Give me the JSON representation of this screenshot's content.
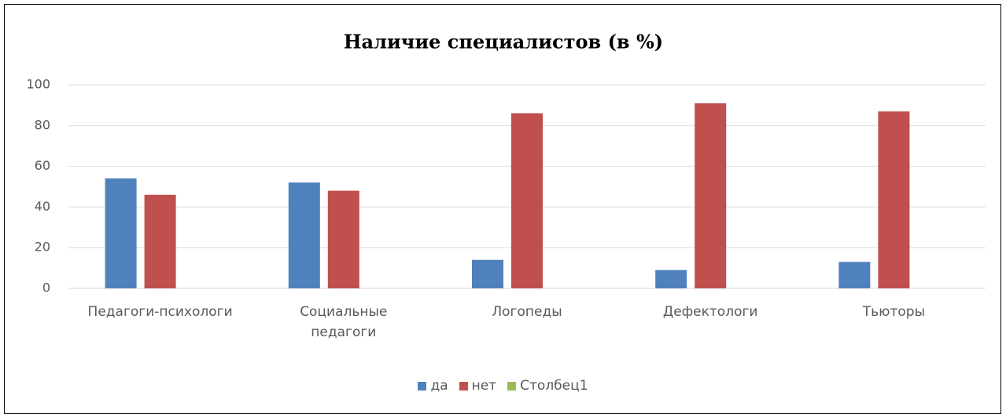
{
  "chart_data": {
    "type": "bar",
    "title": "Наличие специалистов (в %)",
    "categories": [
      "Педагоги-психологи",
      "Социальные педагоги",
      "Логопеды",
      "Дефектологи",
      "Тьюторы"
    ],
    "series": [
      {
        "name": "да",
        "color": "#4f81bd",
        "values": [
          54,
          52,
          14,
          9,
          13
        ]
      },
      {
        "name": "нет",
        "color": "#c0504d",
        "values": [
          46,
          48,
          86,
          91,
          87
        ]
      },
      {
        "name": "Столбец1",
        "color": "#9bbb59",
        "values": [
          null,
          null,
          null,
          null,
          null
        ]
      }
    ],
    "ylim": [
      0,
      100
    ],
    "yticks": [
      0,
      20,
      40,
      60,
      80,
      100
    ],
    "grid": true,
    "legend": "bottom"
  }
}
